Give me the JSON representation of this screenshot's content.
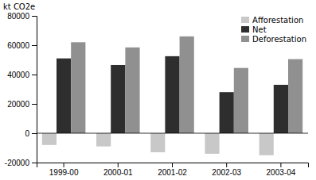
{
  "chart_data": {
    "type": "bar",
    "ylabel": "kt CO2e",
    "categories": [
      "1999-00",
      "2000-01",
      "2001-02",
      "2002-03",
      "2003-04"
    ],
    "series": [
      {
        "name": "Afforestation",
        "color": "#c8c8c8",
        "values": [
          -8000,
          -9000,
          -13000,
          -14000,
          -15000
        ]
      },
      {
        "name": "Net",
        "color": "#2e2e2e",
        "values": [
          51000,
          46500,
          52500,
          28000,
          33000
        ]
      },
      {
        "name": "Deforestation",
        "color": "#909090",
        "values": [
          62000,
          58500,
          66000,
          44500,
          50500
        ]
      }
    ],
    "ylim": [
      -20000,
      80000
    ],
    "yticks": [
      -20000,
      0,
      20000,
      40000,
      60000,
      80000
    ],
    "grid": false,
    "legend": "upper right"
  }
}
